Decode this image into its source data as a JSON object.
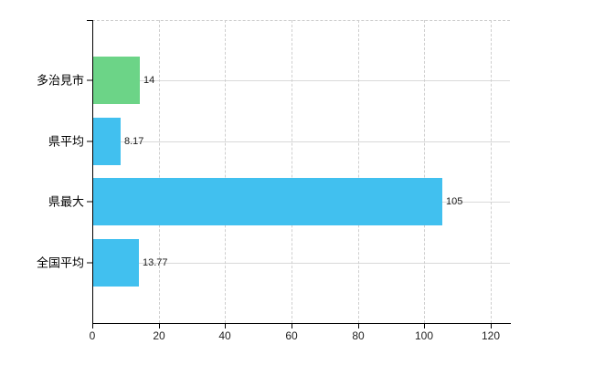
{
  "chart_data": {
    "type": "bar",
    "orientation": "horizontal",
    "title": "",
    "xlabel": "",
    "ylabel": "",
    "categories": [
      "多治見市",
      "県平均",
      "県最大",
      "全国平均"
    ],
    "values": [
      14,
      8.17,
      105,
      13.77
    ],
    "value_labels": [
      "14",
      "8.17",
      "105",
      "13.77"
    ],
    "bar_colors": [
      "#6cd487",
      "#41c0ef",
      "#41c0ef",
      "#41c0ef"
    ],
    "x_ticks": [
      0,
      20,
      40,
      60,
      80,
      100,
      120
    ],
    "x_tick_labels": [
      "0",
      "20",
      "40",
      "60",
      "80",
      "100",
      "120"
    ],
    "xlim": [
      0,
      125.8
    ],
    "grid": true,
    "legend": false,
    "style": {
      "axis_color": "#000000",
      "hgrid_color": "#d9d9d9",
      "vgrid_color": "#cfcfcf",
      "top_border_color": "#cccccc",
      "value_label_color": "#1a1a1a",
      "category_label_color": "#000000",
      "background": "#ffffff"
    }
  }
}
